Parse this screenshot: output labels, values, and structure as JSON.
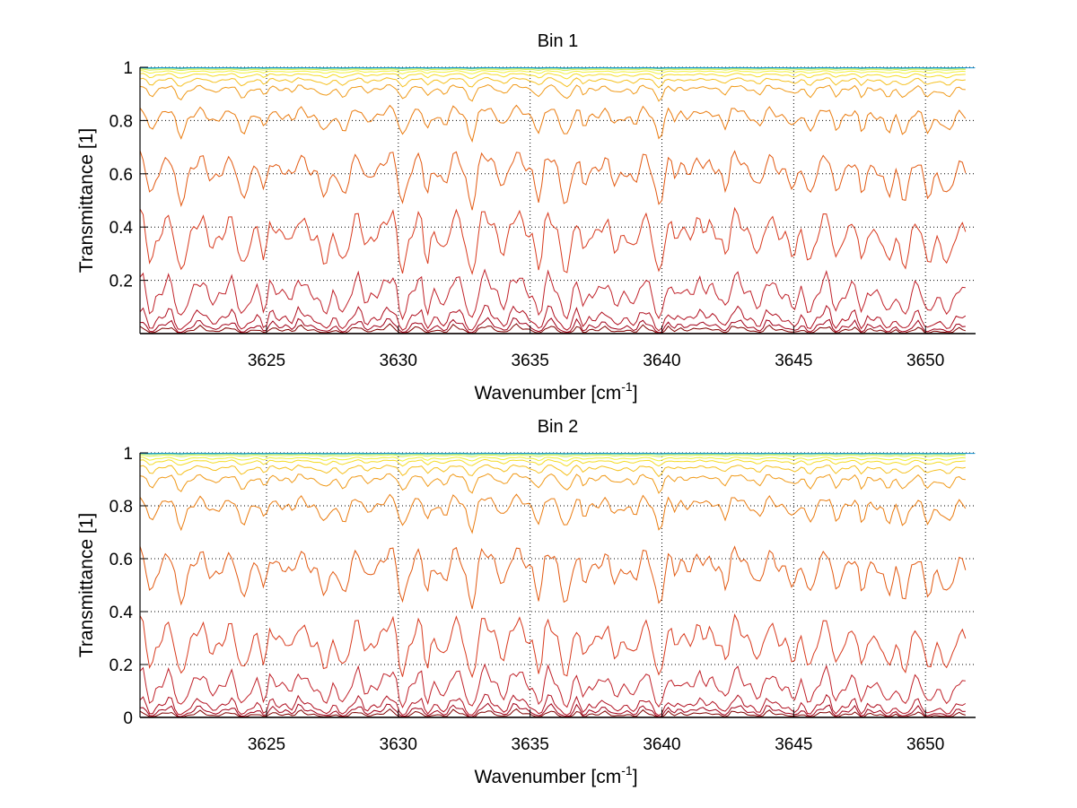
{
  "chart_data": [
    {
      "type": "line",
      "title": "Bin 1",
      "xlabel": "Wavenumber [cm",
      "xlabel_sup": "-1",
      "xlabel_end": "]",
      "ylabel": "Transmittance [1]",
      "xlim": [
        3620.2,
        3651.9
      ],
      "ylim": [
        0,
        1
      ],
      "xticks": [
        3625,
        3630,
        3635,
        3640,
        3645,
        3650
      ],
      "xtick_labels": [
        "3625",
        "3630",
        "3635",
        "3640",
        "3645",
        "3650"
      ],
      "yticks": [
        0.2,
        0.4,
        0.6,
        0.8,
        1
      ],
      "ytick_labels": [
        "0.2",
        "0.4",
        "0.6",
        "0.8",
        "1"
      ],
      "grid": true,
      "legend": "none",
      "series_count": 16,
      "series_baseline_transmittance": [
        0.0,
        0.005,
        0.012,
        0.03,
        0.1,
        0.3,
        0.55,
        0.78,
        0.9,
        0.94,
        0.965,
        0.98,
        0.99,
        0.995,
        0.998,
        1.0
      ],
      "series_colors": [
        "#5a0000",
        "#800000",
        "#a00018",
        "#b01020",
        "#c0222a",
        "#d83a1e",
        "#e25a12",
        "#ea7c10",
        "#f09a1a",
        "#f5c020",
        "#f5dc28",
        "#f2f23c",
        "#d8f050",
        "#a0e880",
        "#40d0c0",
        "#1090d0"
      ]
    },
    {
      "type": "line",
      "title": "Bin 2",
      "xlabel": "Wavenumber [cm",
      "xlabel_sup": "-1",
      "xlabel_end": "]",
      "ylabel": "Transmittance [1]",
      "xlim": [
        3620.2,
        3651.9
      ],
      "ylim": [
        0,
        1
      ],
      "xticks": [
        3625,
        3630,
        3635,
        3640,
        3645,
        3650
      ],
      "xtick_labels": [
        "3625",
        "3630",
        "3635",
        "3640",
        "3645",
        "3650"
      ],
      "yticks": [
        0,
        0.2,
        0.4,
        0.6,
        0.8,
        1
      ],
      "ytick_labels": [
        "0",
        "0.2",
        "0.4",
        "0.6",
        "0.8",
        "1"
      ],
      "grid": true,
      "legend": "none",
      "series_count": 16,
      "series_baseline_transmittance": [
        0.0,
        0.004,
        0.01,
        0.022,
        0.075,
        0.22,
        0.5,
        0.76,
        0.88,
        0.93,
        0.96,
        0.975,
        0.988,
        0.994,
        0.998,
        1.0
      ],
      "series_colors": [
        "#5a0000",
        "#800000",
        "#a00018",
        "#b01020",
        "#c0222a",
        "#d83a1e",
        "#e25a12",
        "#ea7c10",
        "#f09a1a",
        "#f5c020",
        "#f5dc28",
        "#f2f23c",
        "#d8f050",
        "#a0e880",
        "#40d0c0",
        "#1090d0"
      ]
    }
  ]
}
